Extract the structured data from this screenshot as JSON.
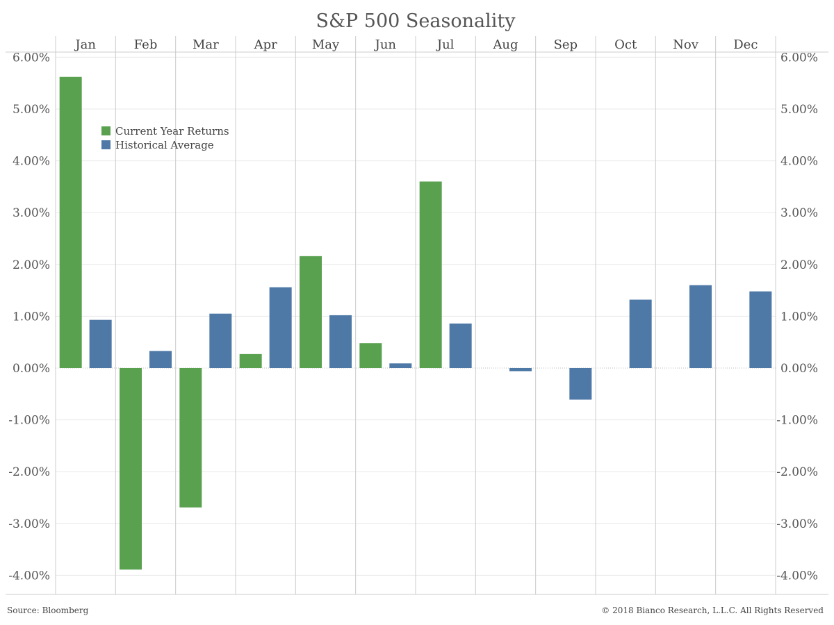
{
  "title": "S&P 500 Seasonality",
  "source": "Source: Bloomberg",
  "copyright": "© 2018 Bianco Research, L.L.C. All Rights Reserved",
  "colors": {
    "current": "#59a14f",
    "historical": "#4e79a7",
    "grid": "#e8e8e8",
    "divider": "#cccccc",
    "zero": "#bbbbbb"
  },
  "chart_data": {
    "type": "bar",
    "title": "S&P 500 Seasonality",
    "categories": [
      "Jan",
      "Feb",
      "Mar",
      "Apr",
      "May",
      "Jun",
      "Jul",
      "Aug",
      "Sep",
      "Oct",
      "Nov",
      "Dec"
    ],
    "series": [
      {
        "name": "Current Year Returns",
        "color": "#59a14f",
        "values": [
          5.62,
          -3.89,
          -2.69,
          0.27,
          2.16,
          0.48,
          3.6,
          null,
          null,
          null,
          null,
          null
        ]
      },
      {
        "name": "Historical Average",
        "color": "#4e79a7",
        "values": [
          0.93,
          0.33,
          1.05,
          1.56,
          1.02,
          0.09,
          0.86,
          -0.06,
          -0.61,
          1.32,
          1.6,
          1.48
        ]
      }
    ],
    "ylim": [
      -4.3,
      6.3
    ],
    "yticks": [
      "6.00%",
      "5.00%",
      "4.00%",
      "3.00%",
      "2.00%",
      "1.00%",
      "0.00%",
      "-1.00%",
      "-2.00%",
      "-3.00%",
      "-4.00%"
    ],
    "ytick_values": [
      6,
      5,
      4,
      3,
      2,
      1,
      0,
      -1,
      -2,
      -3,
      -4
    ],
    "legend": [
      "Current Year Returns",
      "Historical Average"
    ],
    "legend_position": "top-left",
    "grid": true
  }
}
